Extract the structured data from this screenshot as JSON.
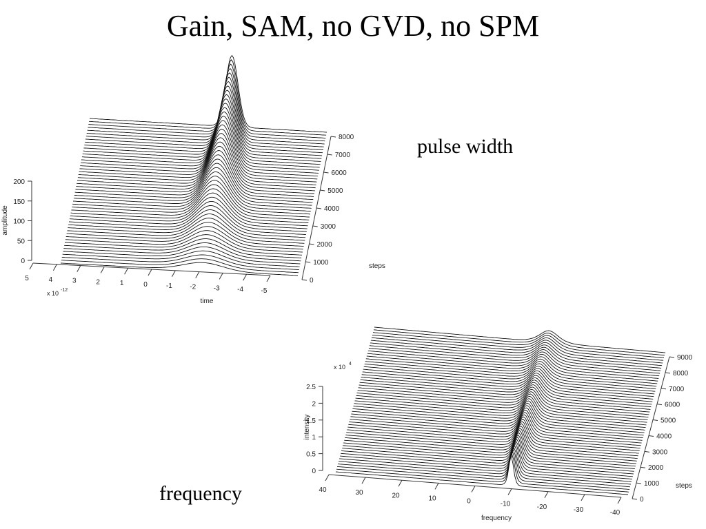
{
  "slide": {
    "title": "Gain, SAM, no GVD, no SPM",
    "captions": {
      "pulse_width": "pulse width",
      "frequency": "frequency"
    }
  },
  "chart_data": [
    {
      "type": "line",
      "subtype": "waterfall-3d",
      "title": "",
      "xlabel": "time",
      "x_multiplier_label": "x 10",
      "x_multiplier_exponent": "-12",
      "ylabel": "steps",
      "zlabel": "amplitude",
      "x_ticks": [
        "5",
        "4",
        "3",
        "2",
        "1",
        "0",
        "-1",
        "-2",
        "-3",
        "-4",
        "-5"
      ],
      "y_ticks": [
        "0",
        "1000",
        "2000",
        "3000",
        "4000",
        "5000",
        "6000",
        "7000",
        "8000"
      ],
      "z_ticks": [
        "0",
        "50",
        "100",
        "150",
        "200"
      ],
      "xlim": [
        5,
        -5
      ],
      "ylim": [
        0,
        8000
      ],
      "zlim": [
        0,
        200
      ],
      "trace_count": 50,
      "trace_step_spacing": 160,
      "pulse": {
        "center": -1,
        "initial_fwhm": 2.0,
        "final_fwhm": 0.6,
        "initial_peak": 20,
        "final_peak": 180
      }
    },
    {
      "type": "line",
      "subtype": "waterfall-3d",
      "title": "",
      "xlabel": "frequency",
      "ylabel": "steps",
      "zlabel": "intensity",
      "z_multiplier_label": "x 10",
      "z_multiplier_exponent": "4",
      "x_ticks": [
        "40",
        "30",
        "20",
        "10",
        "0",
        "-10",
        "-20",
        "-30",
        "-40"
      ],
      "y_ticks": [
        "0",
        "1000",
        "2000",
        "3000",
        "4000",
        "5000",
        "6000",
        "7000",
        "8000",
        "9000"
      ],
      "z_ticks": [
        "0",
        "0.5",
        "1",
        "1.5",
        "2",
        "2.5"
      ],
      "xlim": [
        40,
        -40
      ],
      "ylim": [
        0,
        9000
      ],
      "zlim": [
        0,
        2.5
      ],
      "trace_count": 56,
      "trace_step_spacing": 160,
      "pulse": {
        "center": -8,
        "initial_fwhm": 1.5,
        "final_fwhm": 6,
        "initial_peak": 0.9,
        "final_peak": 0.35
      }
    }
  ]
}
